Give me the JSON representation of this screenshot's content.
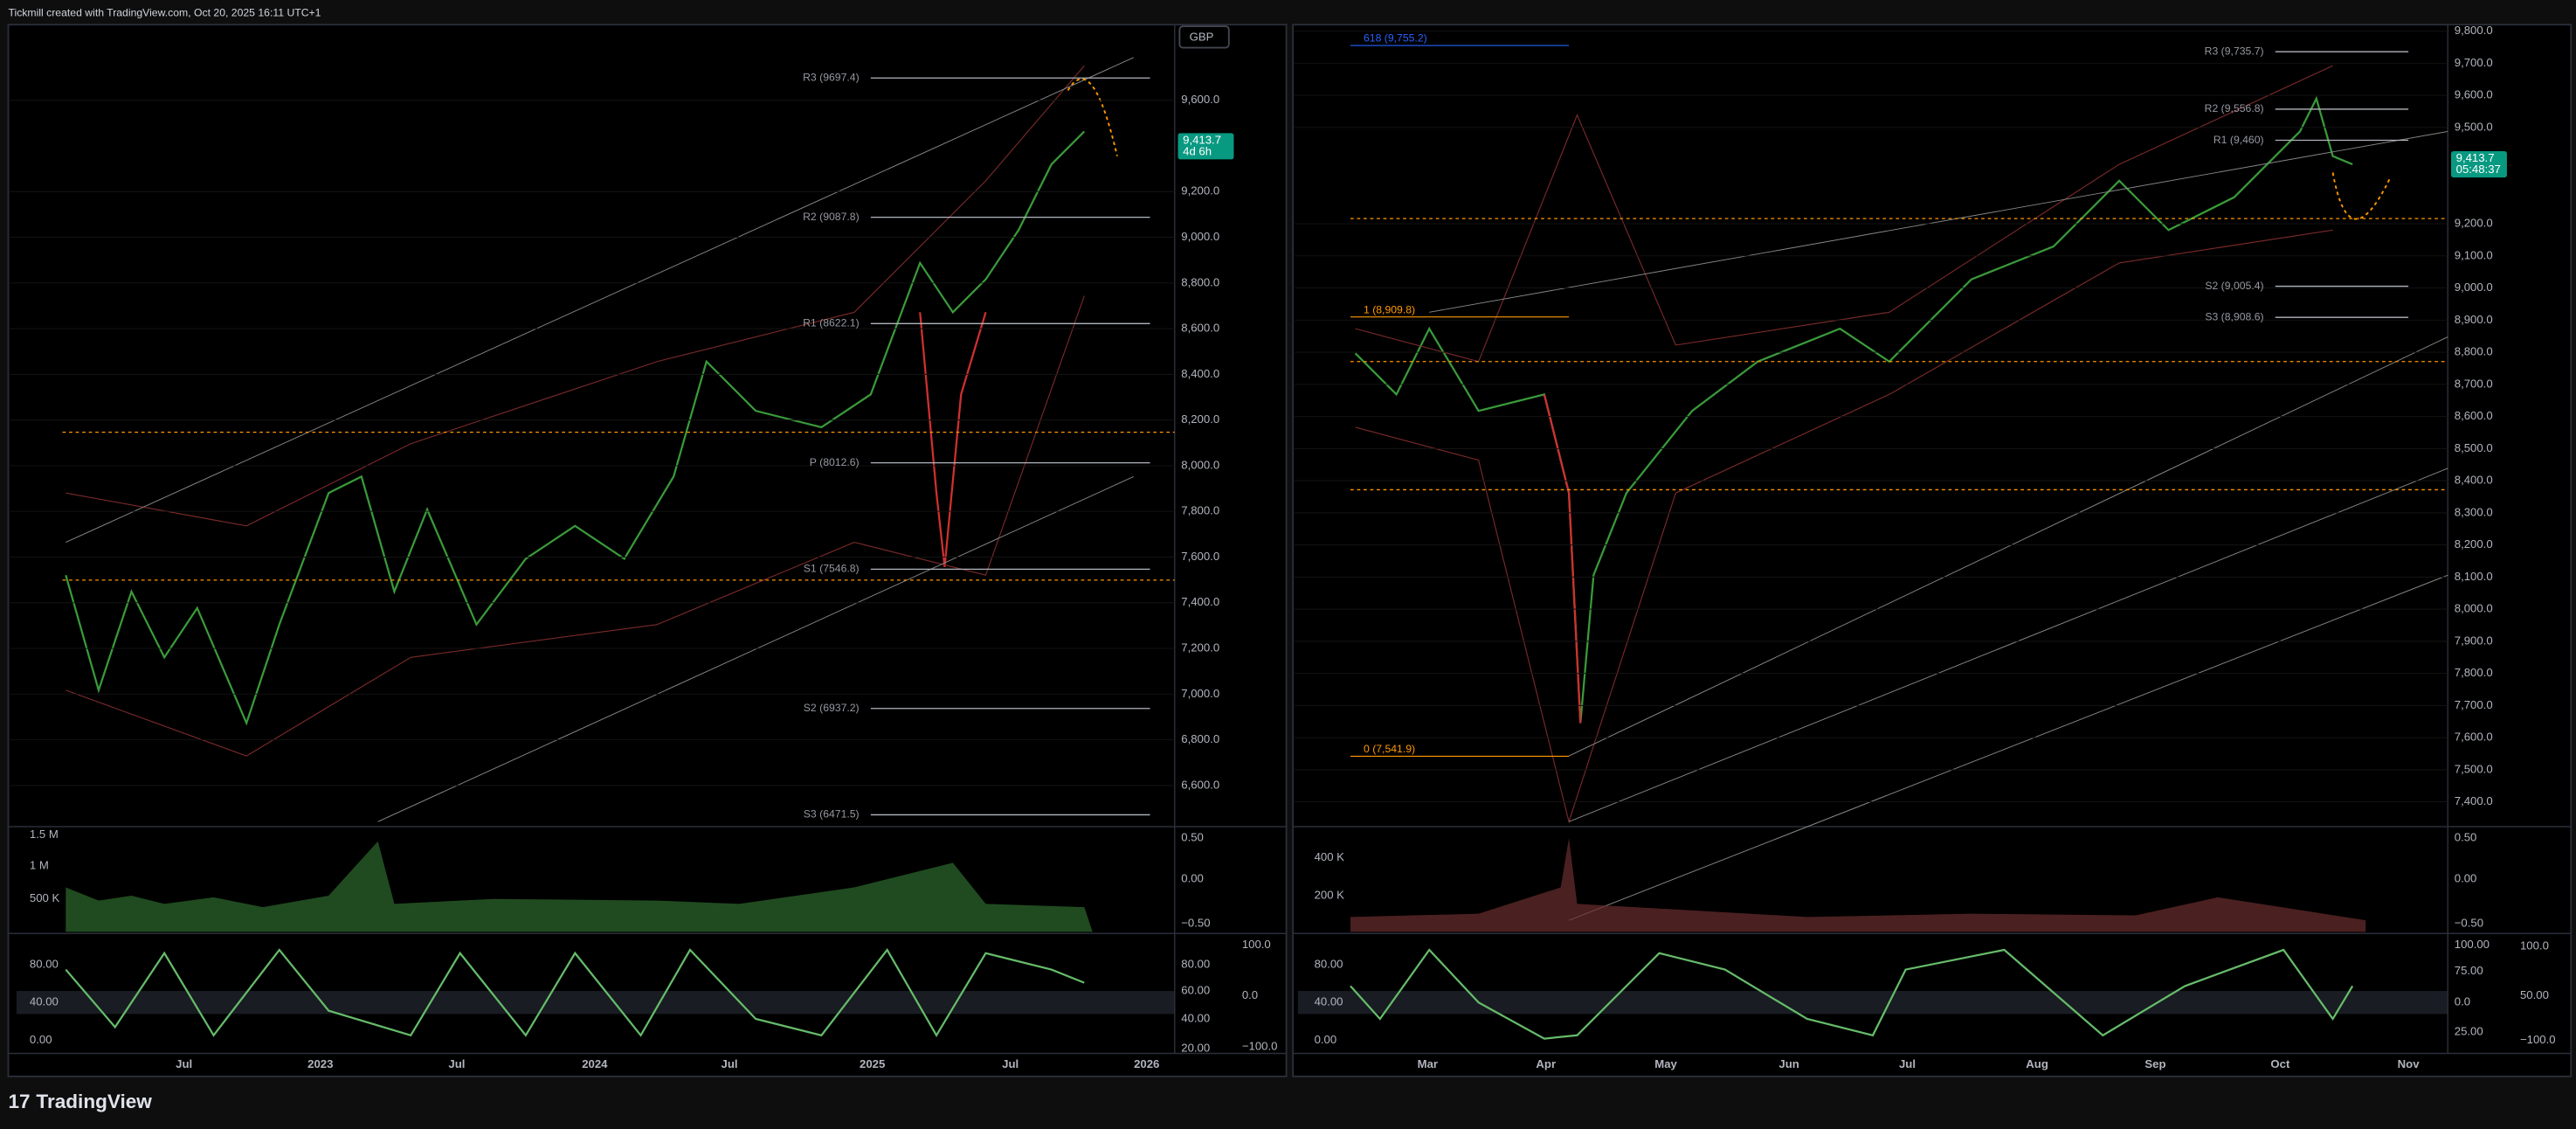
{
  "header": {
    "title": "Tickmill created with TradingView.com, Oct 20, 2025 16:11 UTC+1"
  },
  "footer": {
    "brand": "TradingView"
  },
  "panels": [
    {
      "currency": "GBP",
      "price_axis": {
        "ylim": [
          6427,
          9931
        ],
        "ticks": [
          {
            "value": 9600,
            "label": "9,600.0"
          },
          {
            "value": 9200,
            "label": "9,200.0"
          },
          {
            "value": 9000,
            "label": "9,000.0"
          },
          {
            "value": 8800,
            "label": "8,800.0"
          },
          {
            "value": 8600,
            "label": "8,600.0"
          },
          {
            "value": 8400,
            "label": "8,400.0"
          },
          {
            "value": 8200,
            "label": "8,200.0"
          },
          {
            "value": 8000,
            "label": "8,000.0"
          },
          {
            "value": 7800,
            "label": "7,800.0"
          },
          {
            "value": 7600,
            "label": "7,600.0"
          },
          {
            "value": 7400,
            "label": "7,400.0"
          },
          {
            "value": 7200,
            "label": "7,200.0"
          },
          {
            "value": 7000,
            "label": "7,000.0"
          },
          {
            "value": 6800,
            "label": "6,800.0"
          },
          {
            "value": 6600,
            "label": "6,600.0"
          }
        ]
      },
      "pivots": [
        {
          "label": "R3 (9697.4)",
          "value": 9697.4
        },
        {
          "label": "R2 (9087.8)",
          "value": 9087.8
        },
        {
          "label": "R1 (8622.1)",
          "value": 8622.1
        },
        {
          "label": "P (8012.6)",
          "value": 8012.6
        },
        {
          "label": "S1 (7546.8)",
          "value": 7546.8
        },
        {
          "label": "S2 (6937.2)",
          "value": 6937.2
        },
        {
          "label": "S3 (6471.5)",
          "value": 6471.5
        }
      ],
      "fib_levels": [],
      "badge": {
        "price": "9,413.7",
        "countdown": "4d 6h"
      },
      "volume_axis": [
        "1.5 M",
        "1 M",
        "500 K"
      ],
      "volume_right_axis": [
        "0.50",
        "0.00",
        "−0.50"
      ],
      "oscillator_axis": [
        "80.00",
        "40.00",
        "0.00"
      ],
      "oscillator_right_axis": [
        "100.0",
        "80.00",
        "60.00",
        "0.0",
        "40.00",
        "20.00",
        "−100.0"
      ],
      "time_axis": [
        "Jul",
        "2023",
        "Jul",
        "2024",
        "Jul",
        "2025",
        "Jul",
        "2026"
      ]
    },
    {
      "price_axis": {
        "ylim": [
          7328,
          9820
        ],
        "ticks": [
          {
            "value": 9800,
            "label": "9,800.0"
          },
          {
            "value": 9700,
            "label": "9,700.0"
          },
          {
            "value": 9600,
            "label": "9,600.0"
          },
          {
            "value": 9500,
            "label": "9,500.0"
          },
          {
            "value": 9200,
            "label": "9,200.0"
          },
          {
            "value": 9100,
            "label": "9,100.0"
          },
          {
            "value": 9000,
            "label": "9,000.0"
          },
          {
            "value": 8900,
            "label": "8,900.0"
          },
          {
            "value": 8800,
            "label": "8,800.0"
          },
          {
            "value": 8700,
            "label": "8,700.0"
          },
          {
            "value": 8600,
            "label": "8,600.0"
          },
          {
            "value": 8500,
            "label": "8,500.0"
          },
          {
            "value": 8400,
            "label": "8,400.0"
          },
          {
            "value": 8300,
            "label": "8,300.0"
          },
          {
            "value": 8200,
            "label": "8,200.0"
          },
          {
            "value": 8100,
            "label": "8,100.0"
          },
          {
            "value": 8000,
            "label": "8,000.0"
          },
          {
            "value": 7900,
            "label": "7,900.0"
          },
          {
            "value": 7800,
            "label": "7,800.0"
          },
          {
            "value": 7700,
            "label": "7,700.0"
          },
          {
            "value": 7600,
            "label": "7,600.0"
          },
          {
            "value": 7500,
            "label": "7,500.0"
          },
          {
            "value": 7400,
            "label": "7,400.0"
          }
        ]
      },
      "pivots": [
        {
          "label": "R3 (9,735.7)",
          "value": 9735.7
        },
        {
          "label": "R2 (9,556.8)",
          "value": 9556.8
        },
        {
          "label": "R1 (9,460)",
          "value": 9460
        },
        {
          "label": "S2 (9,005.4)",
          "value": 9005.4
        },
        {
          "label": "S3 (8,908.6)",
          "value": 8908.6
        }
      ],
      "fib_levels": [
        {
          "label": "618 (9,755.2)",
          "value": 9755.2,
          "color": "#2962ff"
        },
        {
          "label": "1 (8,909.8)",
          "value": 8909.8,
          "color": "#ff9800"
        },
        {
          "label": "0 (7,541.9)",
          "value": 7541.9,
          "color": "#ff9800"
        }
      ],
      "badge": {
        "price": "9,413.7",
        "countdown": "05:48:37"
      },
      "volume_axis": [
        "400 K",
        "200 K"
      ],
      "volume_right_axis": [
        "0.50",
        "0.00",
        "−0.50"
      ],
      "oscillator_axis": [
        "80.00",
        "40.00",
        "0.00"
      ],
      "oscillator_right_axis": [
        "100.00",
        "100.0",
        "75.00",
        "50.00",
        "0.0",
        "25.00",
        "−100.0"
      ],
      "time_axis": [
        "Mar",
        "Apr",
        "May",
        "Jun",
        "Jul",
        "Aug",
        "Sep",
        "Oct",
        "Nov"
      ]
    }
  ]
}
